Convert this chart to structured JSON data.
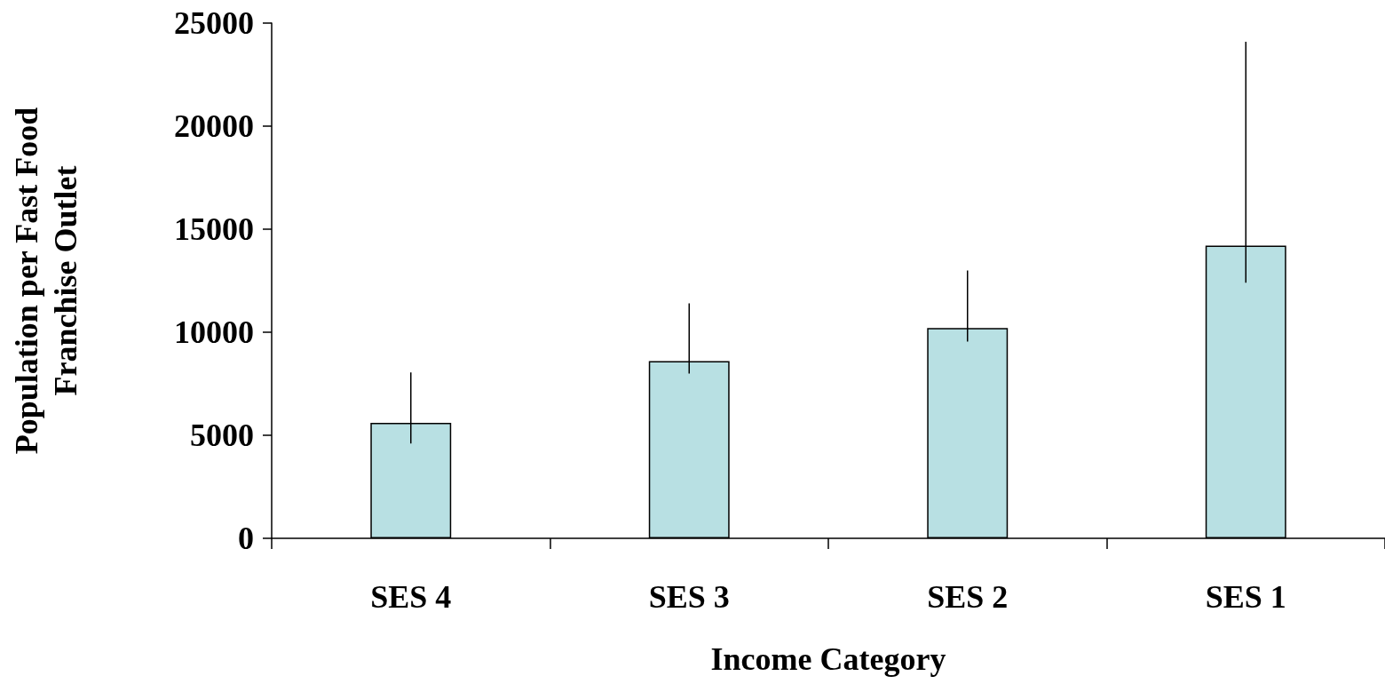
{
  "chart_data": {
    "type": "bar",
    "xlabel": "Income Category",
    "ylabel": "Population per Fast Food\nFranchise Outlet",
    "categories": [
      "SES 4",
      "SES 3",
      "SES 2",
      "SES 1"
    ],
    "values": [
      5600,
      8600,
      10200,
      14200
    ],
    "errors": [
      [
        4600,
        8050
      ],
      [
        8000,
        11400
      ],
      [
        9550,
        13000
      ],
      [
        12400,
        24100
      ]
    ],
    "color": "#b8e0e3",
    "ylim": [
      0,
      25000
    ],
    "yticks": [
      0,
      5000,
      10000,
      15000,
      20000,
      25000
    ],
    "grid": false
  }
}
